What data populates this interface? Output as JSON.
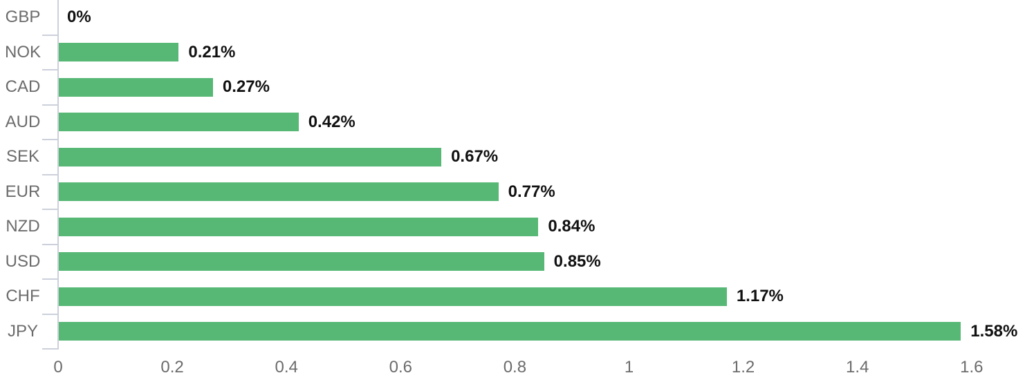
{
  "chart_data": {
    "type": "bar",
    "orientation": "horizontal",
    "title": "",
    "xlabel": "",
    "ylabel": "",
    "categories": [
      "GBP",
      "NOK",
      "CAD",
      "AUD",
      "SEK",
      "EUR",
      "NZD",
      "USD",
      "CHF",
      "JPY"
    ],
    "values": [
      0,
      0.21,
      0.27,
      0.42,
      0.67,
      0.77,
      0.84,
      0.85,
      1.17,
      1.58
    ],
    "value_labels": [
      "0%",
      "0.21%",
      "0.27%",
      "0.42%",
      "0.67%",
      "0.77%",
      "0.84%",
      "0.85%",
      "1.17%",
      "1.58%"
    ],
    "xlim": [
      0,
      1.6
    ],
    "x_ticks": [
      0,
      0.2,
      0.4,
      0.6,
      0.8,
      1,
      1.2,
      1.4,
      1.6
    ],
    "x_tick_labels": [
      "0",
      "0.2",
      "0.4",
      "0.6",
      "0.8",
      "1",
      "1.2",
      "1.4",
      "1.6"
    ],
    "grid": false,
    "legend": false,
    "colors": {
      "bar": "#57b876",
      "axis_line": "#ccd0da",
      "category_label": "#6b6b6b",
      "value_label": "#111111",
      "x_tick_label": "#6b6b6b",
      "background": "#ffffff"
    }
  }
}
